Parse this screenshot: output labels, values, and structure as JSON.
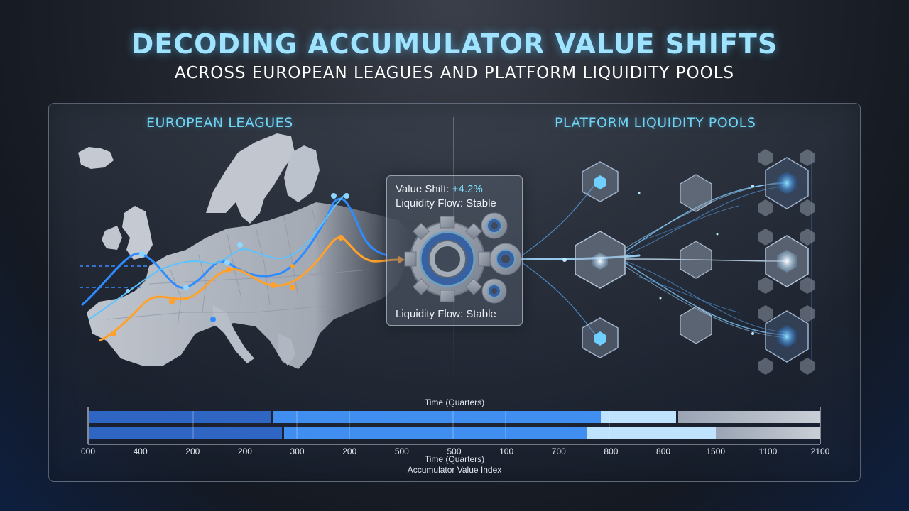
{
  "header": {
    "title": "DECODING ACCUMULATOR VALUE SHIFTS",
    "subtitle": "ACROSS EUROPEAN LEAGUES AND PLATFORM LIQUIDITY POOLS"
  },
  "sections": {
    "left_label": "EUROPEAN LEAGUES",
    "right_label": "PLATFORM LIQUIDITY POOLS"
  },
  "info_box": {
    "shift_label": "Value Shift:",
    "shift_value": "+4.2%",
    "flow_label_top": "Liquidity Flow: Stable",
    "flow_label_bottom": "Liquidity Flow: Stable"
  },
  "timeline": {
    "axis_title_top": "Time (Quarters)",
    "axis_title_bottom": "Time (Quarters)",
    "axis_caption": "Accumulator Value Index",
    "ticks": [
      "000",
      "400",
      "200",
      "200",
      "300",
      "200",
      "500",
      "500",
      "100",
      "700",
      "800",
      "800",
      "1500",
      "1100",
      "2100"
    ]
  },
  "colors": {
    "accent_blue": "#3aa8ff",
    "accent_orange": "#ffa12a",
    "title_cyan": "#9fe3ff"
  }
}
